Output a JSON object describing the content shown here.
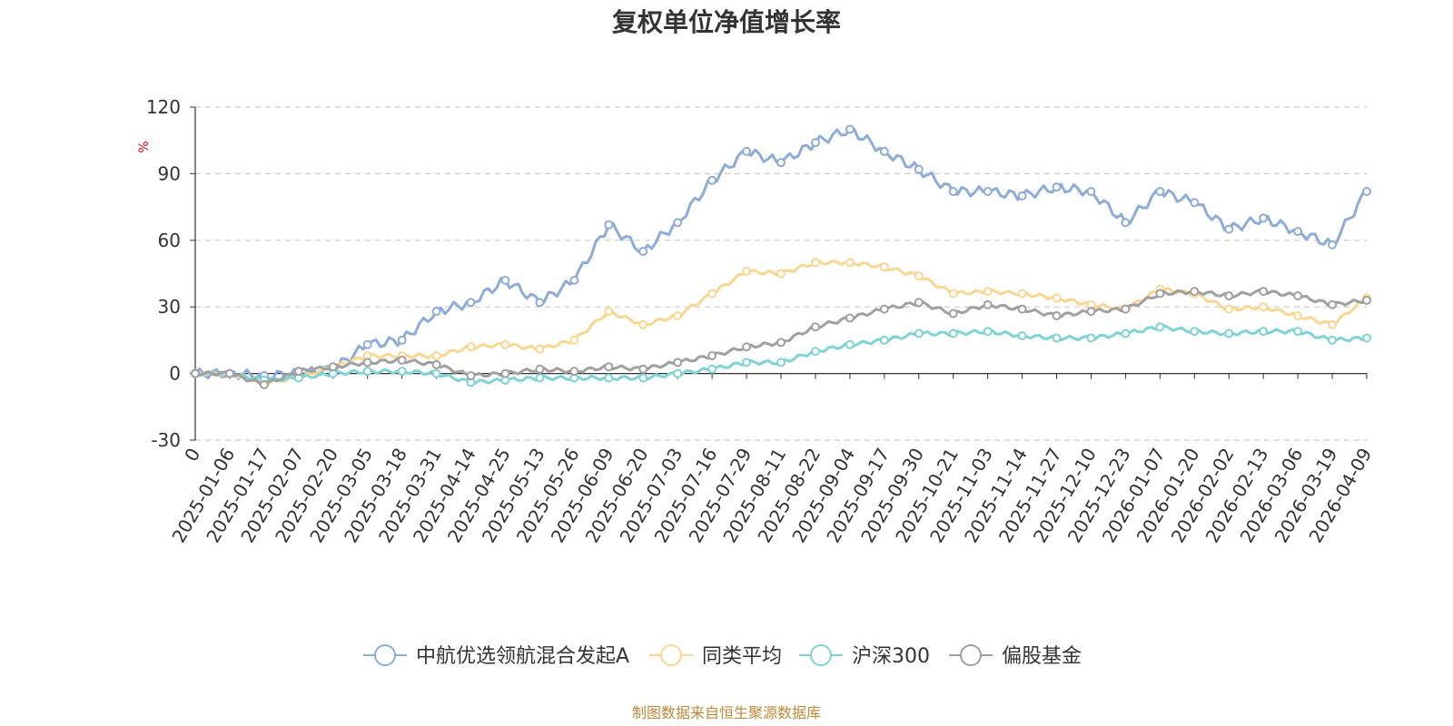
{
  "chart_data": {
    "type": "line",
    "title": "复权单位净值增长率",
    "ylabel": "%",
    "ylim": [
      -30,
      120
    ],
    "yticks": [
      -30,
      0,
      30,
      60,
      90,
      120
    ],
    "grid": true,
    "legend_position": "bottom",
    "source": "制图数据来自恒生聚源数据库",
    "x_start_label": "0",
    "categories": [
      "2025-01-06",
      "2025-01-17",
      "2025-02-07",
      "2025-02-20",
      "2025-03-05",
      "2025-03-18",
      "2025-03-31",
      "2025-04-14",
      "2025-04-25",
      "2025-05-13",
      "2025-05-26",
      "2025-06-09",
      "2025-06-20",
      "2025-07-03",
      "2025-07-16",
      "2025-07-29",
      "2025-08-11",
      "2025-08-22",
      "2025-09-04",
      "2025-09-17",
      "2025-09-30",
      "2025-10-21",
      "2025-11-03",
      "2025-11-14",
      "2025-11-27",
      "2025-12-10",
      "2025-12-23",
      "2026-01-07",
      "2026-01-20",
      "2026-02-02",
      "2026-02-13",
      "2026-03-06",
      "2026-03-19",
      "2026-04-09"
    ],
    "series": [
      {
        "name": "中航优选领航混合发起A",
        "color": "#8eacd8",
        "values": [
          0,
          -1,
          0,
          2,
          13,
          15,
          28,
          32,
          42,
          32,
          42,
          67,
          55,
          68,
          87,
          100,
          95,
          104,
          110,
          100,
          92,
          82,
          82,
          80,
          84,
          82,
          68,
          82,
          77,
          65,
          70,
          64,
          58,
          82
        ]
      },
      {
        "name": "同类平均",
        "color": "#fbd691",
        "values": [
          0,
          -4,
          -2,
          3,
          8,
          8,
          8,
          12,
          13,
          11,
          15,
          28,
          22,
          26,
          36,
          46,
          45,
          50,
          50,
          48,
          44,
          36,
          37,
          36,
          34,
          31,
          29,
          38,
          36,
          29,
          30,
          26,
          22,
          34
        ]
      },
      {
        "name": "沪深300",
        "color": "#7fd3d3",
        "values": [
          0,
          -3,
          -2,
          0,
          1,
          1,
          0,
          -4,
          -3,
          -2,
          -2,
          -2,
          -2,
          0,
          2,
          5,
          5,
          10,
          13,
          15,
          18,
          18,
          19,
          17,
          16,
          16,
          18,
          21,
          19,
          18,
          19,
          19,
          15,
          16
        ]
      },
      {
        "name": "偏股基金",
        "color": "#a0a0a0",
        "values": [
          0,
          -5,
          1,
          3,
          5,
          6,
          4,
          -1,
          0,
          2,
          1,
          3,
          2,
          5,
          8,
          12,
          14,
          21,
          25,
          29,
          32,
          27,
          31,
          29,
          26,
          28,
          29,
          36,
          37,
          35,
          37,
          35,
          31,
          33
        ]
      }
    ]
  }
}
